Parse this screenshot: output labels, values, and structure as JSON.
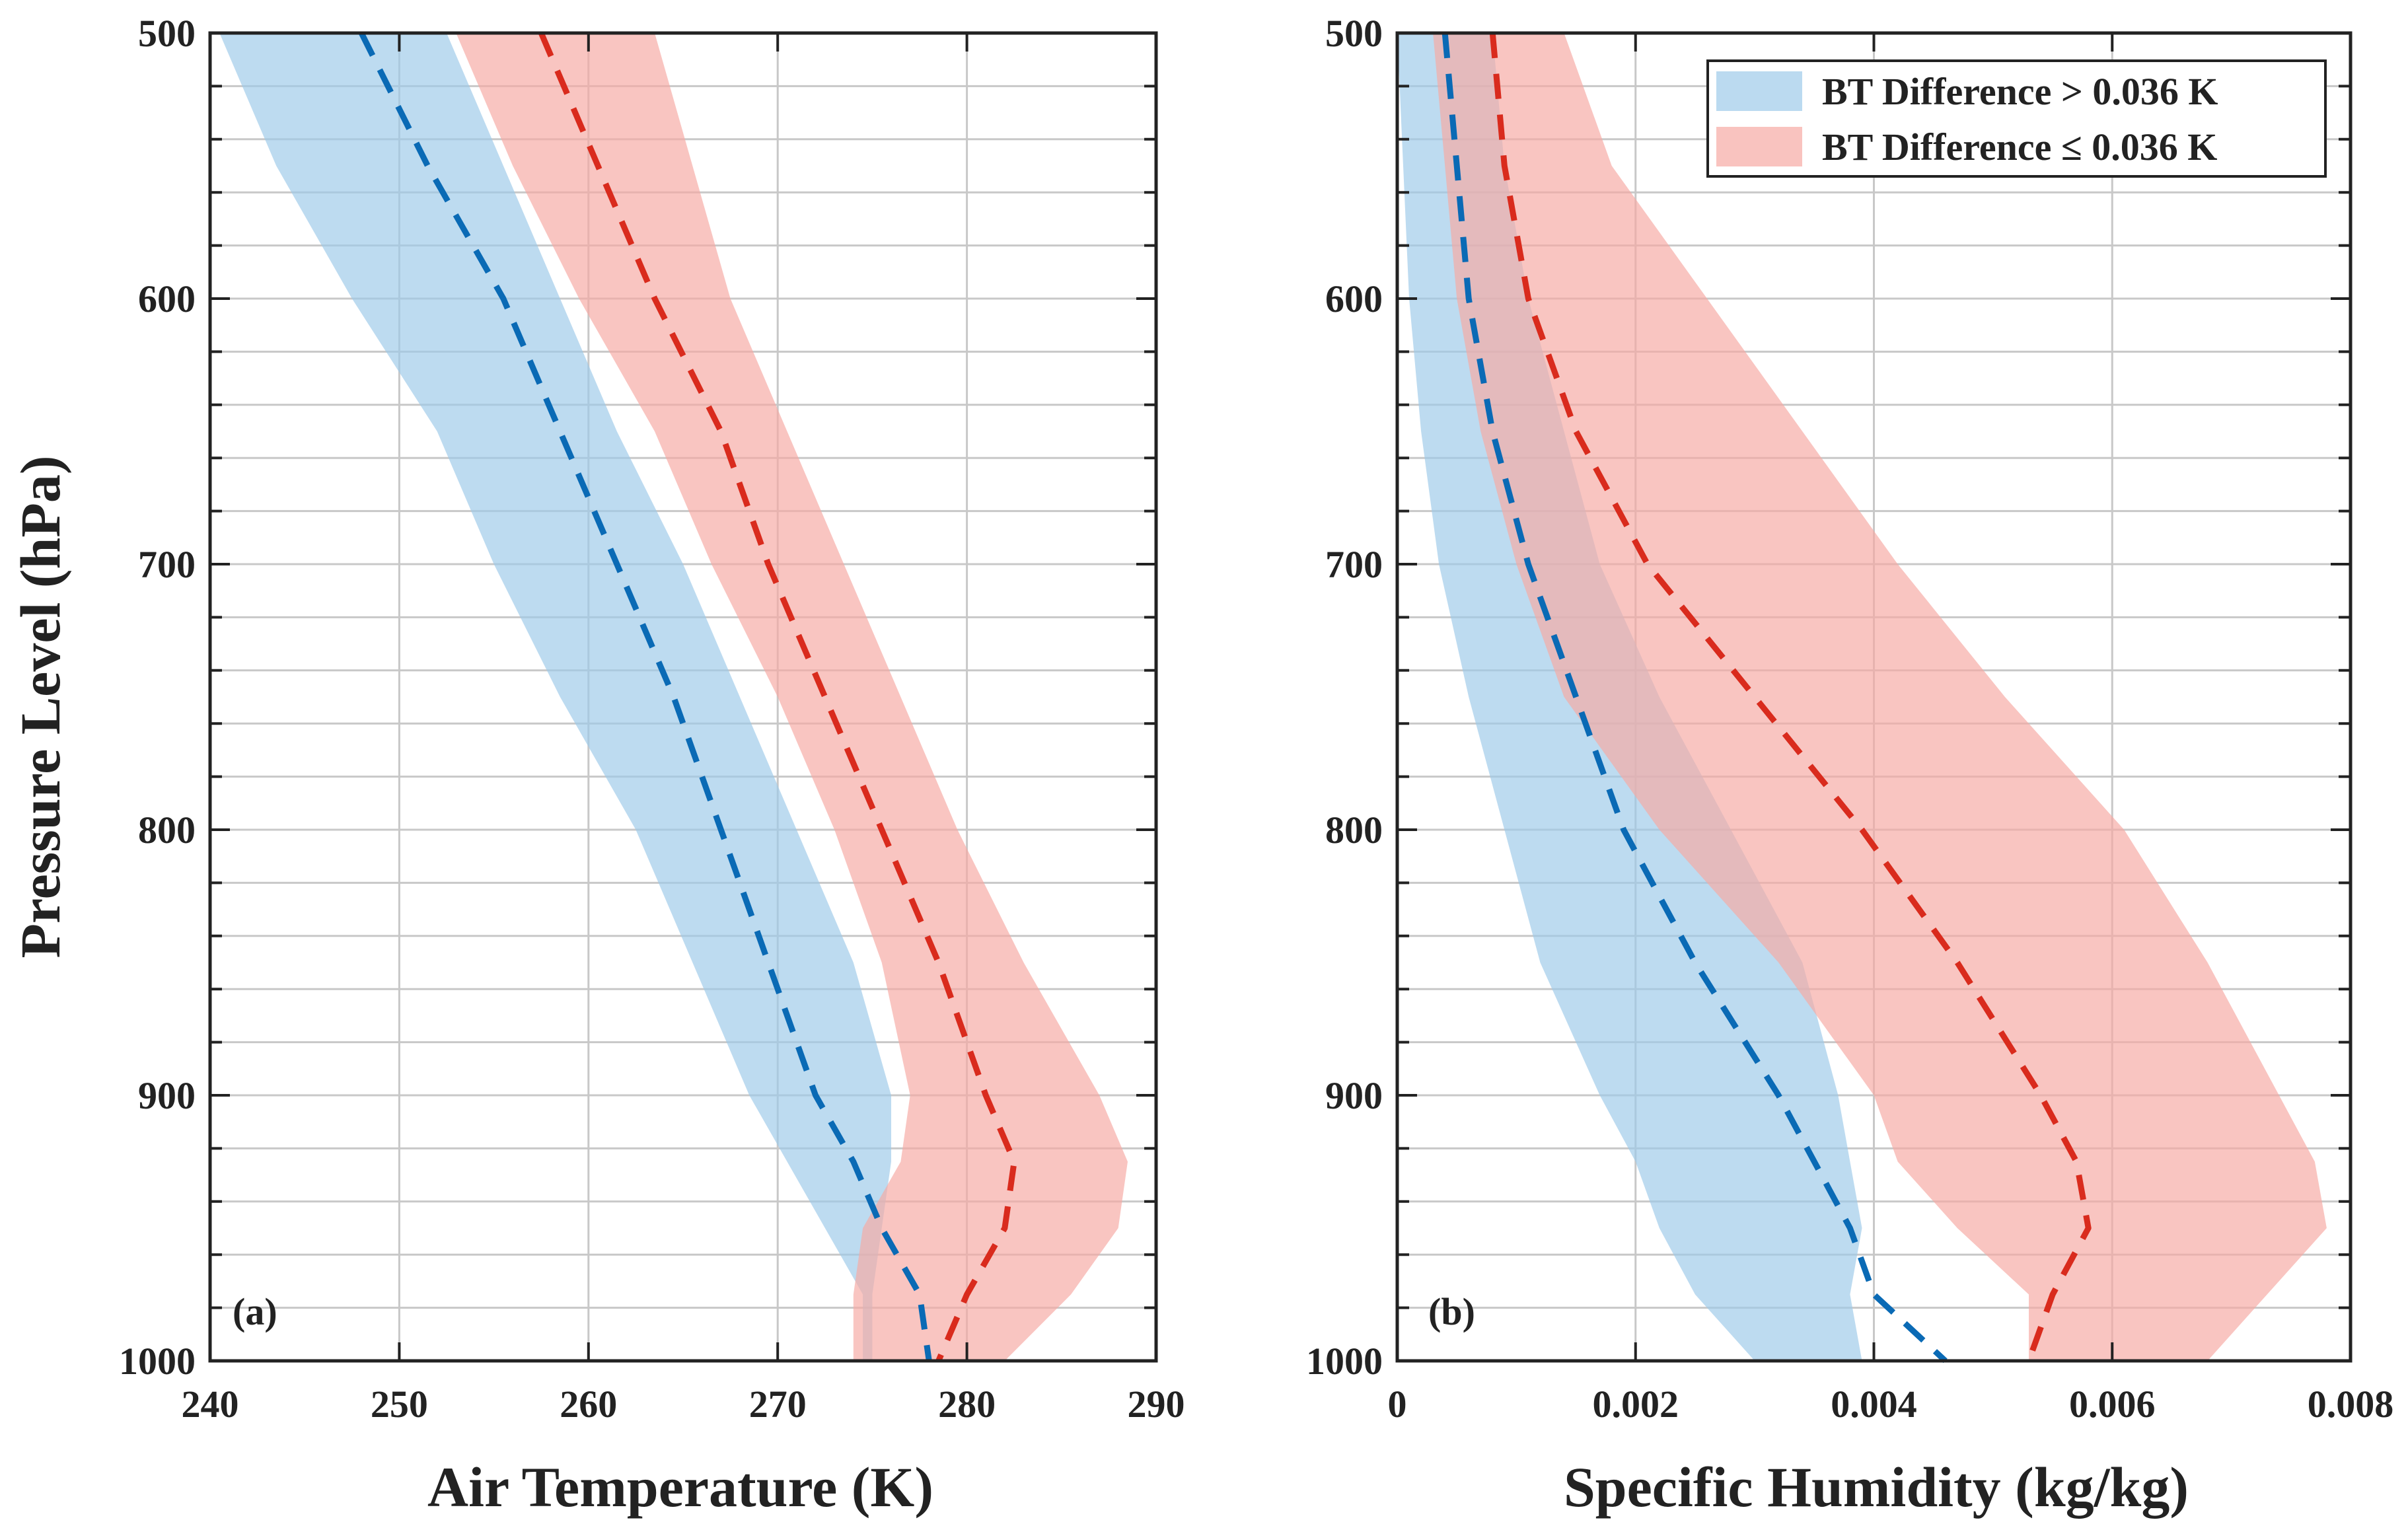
{
  "colors": {
    "blue_fill": "#9ecae9",
    "blue_line": "#0a6ab5",
    "red_fill": "#f6aaa4",
    "red_line": "#d92b1d",
    "grid": "#c8c8c8",
    "axis": "#222222"
  },
  "chart_data": [
    {
      "type": "area",
      "panel_label": "(a)",
      "xlabel": "Air Temperature (K)",
      "ylabel": "Pressure Level (hPa)",
      "xlim": [
        240,
        290
      ],
      "ylim": [
        500,
        1000
      ],
      "xticks": [
        240,
        250,
        260,
        270,
        280,
        290
      ],
      "xtick_labels": [
        "240",
        "250",
        "260",
        "270",
        "280",
        "290"
      ],
      "yticks": [
        500,
        600,
        700,
        800,
        900,
        1000
      ],
      "ytick_labels": [
        "500",
        "600",
        "700",
        "800",
        "900",
        "1000"
      ],
      "grid": true,
      "series": [
        {
          "name": "BT Difference > 0.036 K",
          "color": "blue",
          "pressure": [
            500,
            550,
            600,
            650,
            700,
            750,
            800,
            850,
            900,
            925,
            950,
            975,
            1000
          ],
          "lower": [
            240.5,
            243.5,
            247.5,
            252,
            255,
            258.5,
            262.5,
            265.5,
            268.5,
            270.5,
            272.5,
            274.5,
            274.5
          ],
          "mean": [
            248,
            251.5,
            255.5,
            258.5,
            261.5,
            264.5,
            267,
            269.5,
            272,
            274,
            275.5,
            277.5,
            278
          ],
          "upper": [
            252.5,
            255.5,
            258.5,
            261.5,
            265,
            268,
            271,
            274,
            276,
            276,
            275.5,
            275,
            275
          ]
        },
        {
          "name": "BT Difference ≤ 0.036 K",
          "color": "red",
          "pressure": [
            500,
            550,
            600,
            650,
            700,
            750,
            800,
            850,
            900,
            925,
            950,
            975,
            1000
          ],
          "lower": [
            253,
            256,
            259.5,
            263.5,
            266.5,
            270,
            273,
            275.5,
            277,
            276.5,
            274.5,
            274,
            274
          ],
          "mean": [
            257.5,
            260.5,
            263.5,
            267,
            269.5,
            272.5,
            275.5,
            278.5,
            281,
            282.5,
            282,
            280,
            278.5
          ],
          "upper": [
            263.5,
            265.5,
            267.5,
            270.5,
            273.5,
            276.5,
            279.5,
            283,
            287,
            288.5,
            288,
            285.5,
            282
          ]
        }
      ]
    },
    {
      "type": "area",
      "panel_label": "(b)",
      "xlabel": "Specific Humidity (kg/kg)",
      "ylabel": "",
      "xlim": [
        0,
        0.008
      ],
      "ylim": [
        500,
        1000
      ],
      "xticks": [
        0,
        0.002,
        0.004,
        0.006,
        0.008
      ],
      "xtick_labels": [
        "0",
        "0.002",
        "0.004",
        "0.006",
        "0.008"
      ],
      "yticks": [
        500,
        600,
        700,
        800,
        900,
        1000
      ],
      "ytick_labels": [
        "500",
        "600",
        "700",
        "800",
        "900",
        "1000"
      ],
      "grid": true,
      "legend": {
        "position": "top-right",
        "entries": [
          "BT Difference > 0.036 K",
          "BT Difference ≤ 0.036 K"
        ]
      },
      "series": [
        {
          "name": "BT Difference > 0.036 K",
          "color": "blue",
          "pressure": [
            500,
            550,
            600,
            650,
            700,
            750,
            800,
            850,
            900,
            925,
            950,
            975,
            1000
          ],
          "lower": [
            0,
            5e-05,
            0.0001,
            0.0002,
            0.00035,
            0.0006,
            0.0009,
            0.0012,
            0.0017,
            0.002,
            0.0022,
            0.0025,
            0.003
          ],
          "mean": [
            0.0004,
            0.0005,
            0.0006,
            0.0008,
            0.0011,
            0.0015,
            0.0019,
            0.0025,
            0.0032,
            0.0035,
            0.0038,
            0.004,
            0.0046
          ],
          "upper": [
            0.0008,
            0.0009,
            0.0011,
            0.0014,
            0.0017,
            0.0022,
            0.0028,
            0.0034,
            0.0037,
            0.0038,
            0.0039,
            0.0038,
            0.0039
          ]
        },
        {
          "name": "BT Difference ≤ 0.036 K",
          "color": "red",
          "pressure": [
            500,
            550,
            600,
            650,
            700,
            750,
            800,
            850,
            900,
            925,
            950,
            975,
            1000
          ],
          "lower": [
            0.0003,
            0.0004,
            0.0005,
            0.0007,
            0.001,
            0.0014,
            0.0022,
            0.0032,
            0.004,
            0.0042,
            0.0047,
            0.0053,
            0.0053
          ],
          "mean": [
            0.0008,
            0.0009,
            0.0011,
            0.0015,
            0.0021,
            0.003,
            0.0039,
            0.0047,
            0.0054,
            0.0057,
            0.0058,
            0.0055,
            0.0053
          ],
          "upper": [
            0.0014,
            0.0018,
            0.0026,
            0.0034,
            0.0042,
            0.0051,
            0.0061,
            0.0068,
            0.0074,
            0.0077,
            0.0078,
            0.0073,
            0.0068
          ]
        }
      ]
    }
  ]
}
